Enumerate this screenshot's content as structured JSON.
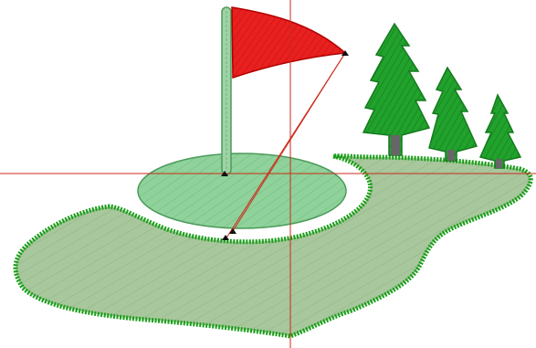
{
  "canvas": {
    "description_visible_text": "",
    "background": "#ffffff"
  },
  "design": {
    "colors": {
      "flag_red": "#e8201f",
      "flag_outline": "#b30000",
      "pole_green": "#9ed3a6",
      "pole_outline": "#4f9a5b",
      "green_fill": "#8fd29b",
      "green_outline": "#4b9b5a",
      "fairway_fill": "#a8c79d",
      "fairway_outline": "#1a9f1a",
      "tree_green": "#1f9a2a",
      "tree_trunk": "#555555",
      "guide_red": "#cc2a1a",
      "node_black": "#111111"
    },
    "elements": [
      "flag",
      "flag-pole",
      "putting-green",
      "fairway",
      "tree-large",
      "tree-medium",
      "tree-small",
      "guide-crosshair"
    ]
  }
}
